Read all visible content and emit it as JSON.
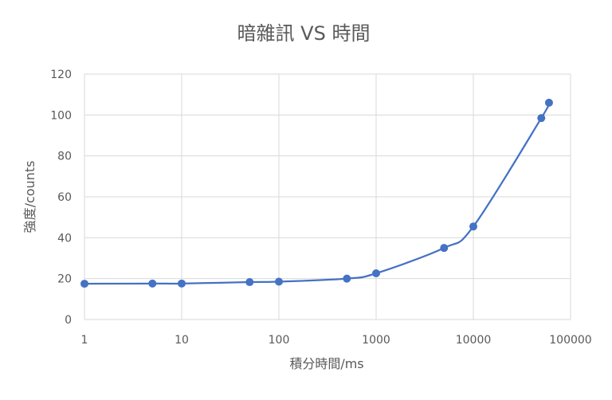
{
  "chart_data": {
    "type": "line",
    "title": "暗雜訊 VS 時間",
    "xlabel": "積分時間/ms",
    "ylabel": "強度/counts",
    "xscale": "log",
    "xlim": [
      1,
      100000
    ],
    "ylim": [
      0,
      120
    ],
    "grid": true,
    "legend": "none",
    "x_ticks": [
      "1",
      "10",
      "100",
      "1000",
      "10000",
      "100000"
    ],
    "y_ticks": [
      "0",
      "20",
      "40",
      "60",
      "80",
      "100",
      "120"
    ],
    "series": [
      {
        "x": [
          1,
          5,
          10,
          50,
          100,
          500,
          1000,
          5000,
          10000,
          50000,
          60000
        ],
        "y": [
          17.5,
          17.6,
          17.6,
          18.3,
          18.5,
          20,
          22.6,
          35,
          45.5,
          98.5,
          106
        ],
        "color": "#4472c4",
        "smooth": true,
        "marker": "circle"
      }
    ]
  }
}
